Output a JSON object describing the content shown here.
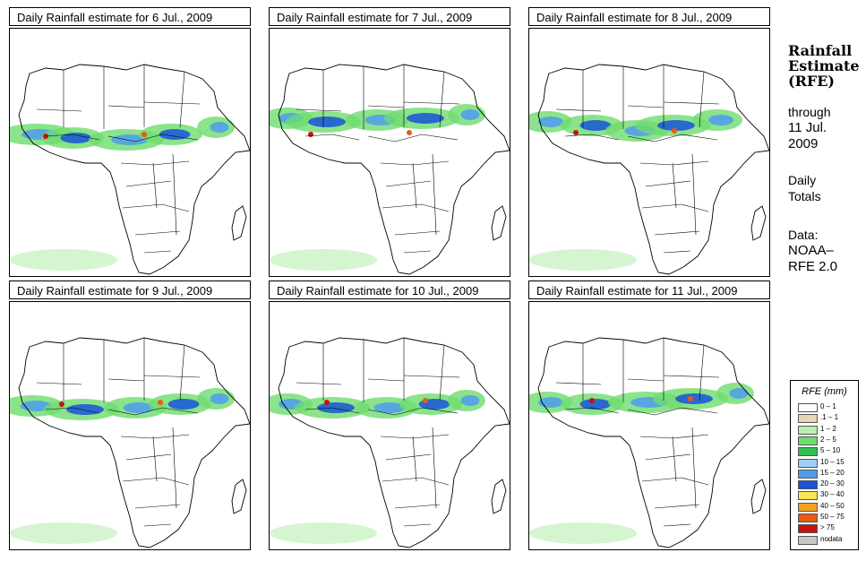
{
  "panels": [
    {
      "title": "Daily Rainfall estimate for  6 Jul., 2009"
    },
    {
      "title": "Daily Rainfall estimate for  7 Jul., 2009"
    },
    {
      "title": "Daily Rainfall estimate for  8 Jul., 2009"
    },
    {
      "title": "Daily Rainfall estimate for  9 Jul., 2009"
    },
    {
      "title": "Daily Rainfall estimate for  10 Jul., 2009"
    },
    {
      "title": "Daily Rainfall estimate for  11 Jul., 2009"
    }
  ],
  "side": {
    "title_line1": "Rainfall",
    "title_line2": "Estimate",
    "title_line3": "(RFE)",
    "through": "through",
    "date_line1": "11 Jul.",
    "date_line2": "2009",
    "daily": "Daily",
    "totals": "Totals",
    "data_label": "Data:",
    "source_line1": "NOAA–",
    "source_line2": "RFE 2.0"
  },
  "legend": {
    "title": "RFE (mm)",
    "items": [
      {
        "label": "0 – 1",
        "color": "#ffffff"
      },
      {
        "label": ".1 – 1",
        "color": "#e8d4b8"
      },
      {
        "label": "1 – 2",
        "color": "#b8eeb0"
      },
      {
        "label": "2 – 5",
        "color": "#6edc6e"
      },
      {
        "label": "5 – 10",
        "color": "#2ec050"
      },
      {
        "label": "10 – 15",
        "color": "#9ed0f4"
      },
      {
        "label": "15 – 20",
        "color": "#4e9cec"
      },
      {
        "label": "20 – 30",
        "color": "#1654d8"
      },
      {
        "label": "30 – 40",
        "color": "#f6e654"
      },
      {
        "label": "40 – 50",
        "color": "#f4a21e"
      },
      {
        "label": "50 – 75",
        "color": "#e85a14"
      },
      {
        "label": "> 75",
        "color": "#cc1010"
      },
      {
        "label": "nodata",
        "color": "#c8c8c8"
      }
    ]
  }
}
